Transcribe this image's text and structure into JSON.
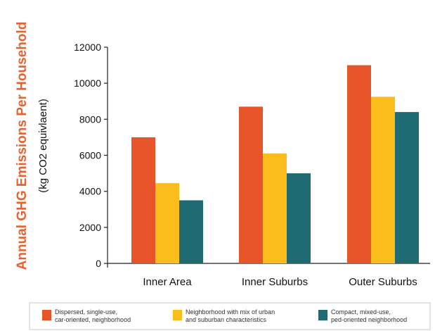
{
  "chart_data": {
    "type": "bar",
    "title": "",
    "xlabel": "",
    "ylabel": "Annual GHG Emissions Per Household",
    "ylabel_unit": "(kg CO2 equivlaent)",
    "categories": [
      "Inner Area",
      "Inner Suburbs",
      "Outer Suburbs"
    ],
    "series": [
      {
        "name": [
          "Dispersed, single-use,",
          "car-oriented, neighborhood"
        ],
        "values": [
          7000,
          8700,
          11000
        ],
        "color": "#e8542a"
      },
      {
        "name": [
          "Neighborhood with mix of urban",
          "and suburban characteristics"
        ],
        "values": [
          4450,
          6100,
          9250
        ],
        "color": "#fbbd1c"
      },
      {
        "name": [
          "Compact, mixed-use,",
          "ped-oriented neighborhood"
        ],
        "values": [
          3500,
          5000,
          8400
        ],
        "color": "#1e6b74"
      }
    ],
    "ylim": [
      0,
      12000
    ],
    "yticks": [
      0,
      2000,
      4000,
      6000,
      8000,
      10000,
      12000
    ],
    "grid": false,
    "legend": "bottom",
    "title_color": "#e8612e"
  }
}
